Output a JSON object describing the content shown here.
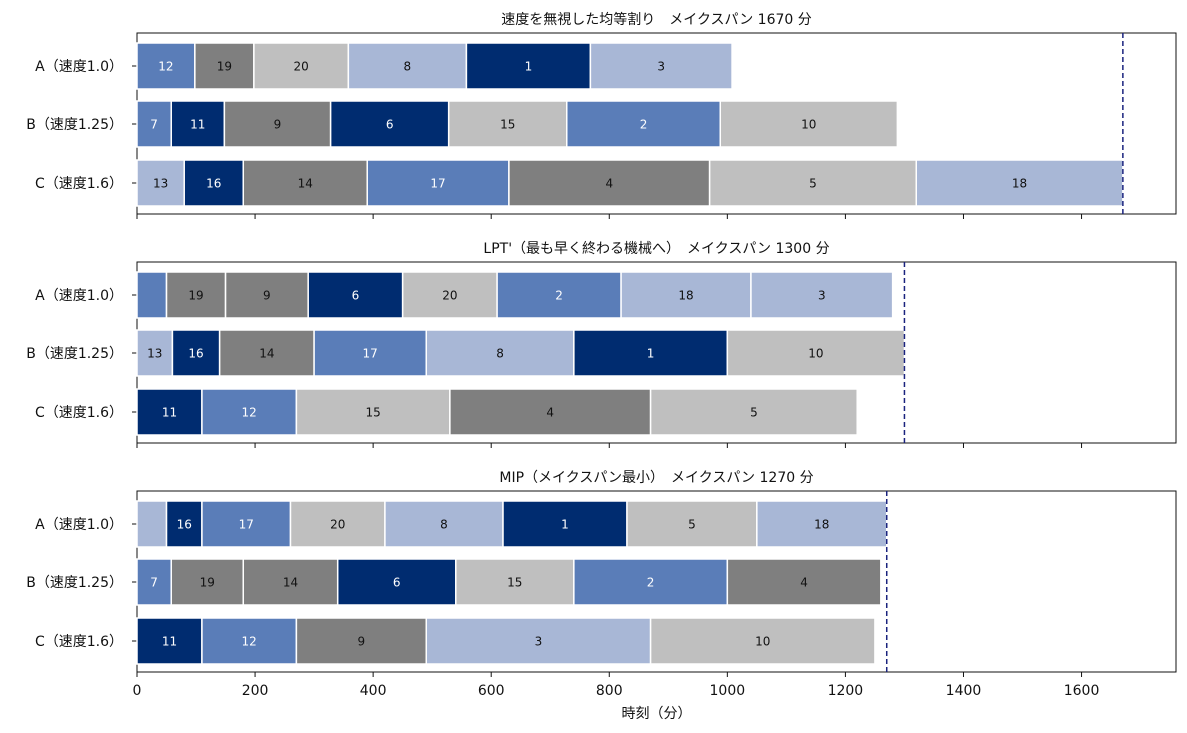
{
  "chart_data": {
    "type": "bar",
    "orientation": "horizontal-gantt",
    "xlabel": "時刻（分）",
    "xlim": [
      0,
      1760
    ],
    "xticks": [
      0,
      200,
      400,
      600,
      800,
      1000,
      1200,
      1400,
      1600
    ],
    "machines": [
      "A（速度1.0）",
      "B（速度1.25）",
      "C（速度1.6）"
    ],
    "palette": {
      "c1": "#5a7db8",
      "c2": "#7f7f7f",
      "c3": "#bfbfbf",
      "c4": "#a8b7d6",
      "c5": "#002c70"
    },
    "label_colors": {
      "c1": "#ffffff",
      "c2": "#111111",
      "c3": "#111111",
      "c4": "#111111",
      "c5": "#ffffff"
    },
    "reference_line_color": "#1a237e",
    "panels": [
      {
        "title": "速度を無視した均等割り　メイクスパン 1670 分",
        "makespan": 1670,
        "rows": [
          [
            {
              "label": "12",
              "start": 0,
              "end": 98,
              "color": "c1"
            },
            {
              "label": "19",
              "start": 98,
              "end": 198,
              "color": "c2"
            },
            {
              "label": "20",
              "start": 198,
              "end": 358,
              "color": "c3"
            },
            {
              "label": "8",
              "start": 358,
              "end": 558,
              "color": "c4"
            },
            {
              "label": "1",
              "start": 558,
              "end": 768,
              "color": "c5"
            },
            {
              "label": "3",
              "start": 768,
              "end": 1008,
              "color": "c4"
            }
          ],
          [
            {
              "label": "7",
              "start": 0,
              "end": 58,
              "color": "c1"
            },
            {
              "label": "11",
              "start": 58,
              "end": 148,
              "color": "c5"
            },
            {
              "label": "9",
              "start": 148,
              "end": 328,
              "color": "c2"
            },
            {
              "label": "6",
              "start": 328,
              "end": 528,
              "color": "c5"
            },
            {
              "label": "15",
              "start": 528,
              "end": 728,
              "color": "c3"
            },
            {
              "label": "2",
              "start": 728,
              "end": 988,
              "color": "c1"
            },
            {
              "label": "10",
              "start": 988,
              "end": 1288,
              "color": "c3"
            }
          ],
          [
            {
              "label": "13",
              "start": 0,
              "end": 80,
              "color": "c4"
            },
            {
              "label": "16",
              "start": 80,
              "end": 180,
              "color": "c5"
            },
            {
              "label": "14",
              "start": 180,
              "end": 390,
              "color": "c2"
            },
            {
              "label": "17",
              "start": 390,
              "end": 630,
              "color": "c1"
            },
            {
              "label": "4",
              "start": 630,
              "end": 970,
              "color": "c2"
            },
            {
              "label": "5",
              "start": 970,
              "end": 1320,
              "color": "c3"
            },
            {
              "label": "18",
              "start": 1320,
              "end": 1670,
              "color": "c4"
            }
          ]
        ]
      },
      {
        "title": "LPT'（最も早く終わる機械へ）　メイクスパン 1300 分",
        "makespan": 1300,
        "rows": [
          [
            {
              "label": "",
              "start": 0,
              "end": 50,
              "color": "c1"
            },
            {
              "label": "19",
              "start": 50,
              "end": 150,
              "color": "c2"
            },
            {
              "label": "9",
              "start": 150,
              "end": 290,
              "color": "c2"
            },
            {
              "label": "6",
              "start": 290,
              "end": 450,
              "color": "c5"
            },
            {
              "label": "20",
              "start": 450,
              "end": 610,
              "color": "c3"
            },
            {
              "label": "2",
              "start": 610,
              "end": 820,
              "color": "c1"
            },
            {
              "label": "18",
              "start": 820,
              "end": 1040,
              "color": "c4"
            },
            {
              "label": "3",
              "start": 1040,
              "end": 1280,
              "color": "c4"
            }
          ],
          [
            {
              "label": "13",
              "start": 0,
              "end": 60,
              "color": "c4"
            },
            {
              "label": "16",
              "start": 60,
              "end": 140,
              "color": "c5"
            },
            {
              "label": "14",
              "start": 140,
              "end": 300,
              "color": "c2"
            },
            {
              "label": "17",
              "start": 300,
              "end": 490,
              "color": "c1"
            },
            {
              "label": "8",
              "start": 490,
              "end": 740,
              "color": "c4"
            },
            {
              "label": "1",
              "start": 740,
              "end": 1000,
              "color": "c5"
            },
            {
              "label": "10",
              "start": 1000,
              "end": 1300,
              "color": "c3"
            }
          ],
          [
            {
              "label": "11",
              "start": 0,
              "end": 110,
              "color": "c5"
            },
            {
              "label": "12",
              "start": 110,
              "end": 270,
              "color": "c1"
            },
            {
              "label": "15",
              "start": 270,
              "end": 530,
              "color": "c3"
            },
            {
              "label": "4",
              "start": 530,
              "end": 870,
              "color": "c2"
            },
            {
              "label": "5",
              "start": 870,
              "end": 1220,
              "color": "c3"
            }
          ]
        ]
      },
      {
        "title": "MIP（メイクスパン最小）　メイクスパン 1270 分",
        "makespan": 1270,
        "rows": [
          [
            {
              "label": "",
              "start": 0,
              "end": 50,
              "color": "c4"
            },
            {
              "label": "16",
              "start": 50,
              "end": 110,
              "color": "c5"
            },
            {
              "label": "17",
              "start": 110,
              "end": 260,
              "color": "c1"
            },
            {
              "label": "20",
              "start": 260,
              "end": 420,
              "color": "c3"
            },
            {
              "label": "8",
              "start": 420,
              "end": 620,
              "color": "c4"
            },
            {
              "label": "1",
              "start": 620,
              "end": 830,
              "color": "c5"
            },
            {
              "label": "5",
              "start": 830,
              "end": 1050,
              "color": "c3"
            },
            {
              "label": "18",
              "start": 1050,
              "end": 1270,
              "color": "c4"
            }
          ],
          [
            {
              "label": "7",
              "start": 0,
              "end": 58,
              "color": "c1"
            },
            {
              "label": "19",
              "start": 58,
              "end": 180,
              "color": "c2"
            },
            {
              "label": "14",
              "start": 180,
              "end": 340,
              "color": "c2"
            },
            {
              "label": "6",
              "start": 340,
              "end": 540,
              "color": "c5"
            },
            {
              "label": "15",
              "start": 540,
              "end": 740,
              "color": "c3"
            },
            {
              "label": "2",
              "start": 740,
              "end": 1000,
              "color": "c1"
            },
            {
              "label": "4",
              "start": 1000,
              "end": 1260,
              "color": "c2"
            }
          ],
          [
            {
              "label": "11",
              "start": 0,
              "end": 110,
              "color": "c5"
            },
            {
              "label": "12",
              "start": 110,
              "end": 270,
              "color": "c1"
            },
            {
              "label": "9",
              "start": 270,
              "end": 490,
              "color": "c2"
            },
            {
              "label": "3",
              "start": 490,
              "end": 870,
              "color": "c4"
            },
            {
              "label": "10",
              "start": 870,
              "end": 1250,
              "color": "c3"
            }
          ]
        ]
      }
    ]
  }
}
